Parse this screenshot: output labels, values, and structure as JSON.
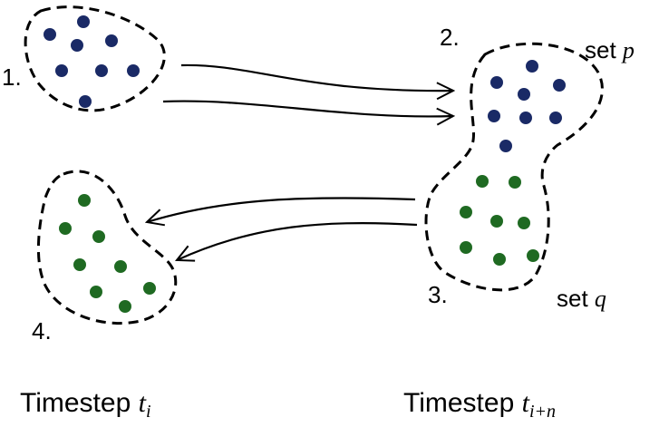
{
  "labels": {
    "n1": "1.",
    "n2": "2.",
    "n3": "3.",
    "n4": "4.",
    "set_p_word": "set",
    "set_p_var": "p",
    "set_q_word": "set",
    "set_q_var": "q",
    "timestep_i_word": "Timestep",
    "timestep_i_var": "t",
    "timestep_i_sub": "i",
    "timestep_in_word": "Timestep",
    "timestep_in_var": "t",
    "timestep_in_sub": "i+n"
  },
  "colors": {
    "set_p_dots": "#1a2a66",
    "set_q_dots": "#1f6a22",
    "outline": "#000000"
  }
}
